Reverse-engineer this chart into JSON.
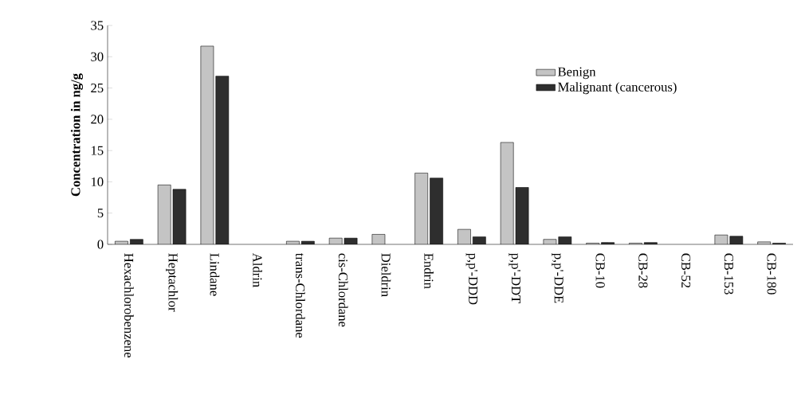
{
  "chart_data": {
    "type": "bar",
    "ylabel": "Concentration in ng/g",
    "categories": [
      "Hexachlorobenzene",
      "Heptachlor",
      "Lindane",
      "Aldrin",
      "trans-Chlordane",
      "cis-Chlordane",
      "Dieldrin",
      "Endrin",
      "p,p'-DDD",
      "p,p'-DDT",
      "p,p'-DDE",
      "CB-10",
      "CB-28",
      "CB-52",
      "CB-153",
      "CB-180"
    ],
    "series": [
      {
        "name": "Benign",
        "color": "#c4c4c4",
        "values": [
          0.5,
          9.5,
          31.7,
          0,
          0.5,
          1.0,
          1.6,
          11.4,
          2.4,
          16.3,
          0.8,
          0.2,
          0.2,
          0,
          1.5,
          0.4
        ]
      },
      {
        "name": "Malignant (cancerous)",
        "color": "#2e2e2e",
        "values": [
          0.8,
          8.8,
          26.9,
          0,
          0.5,
          1.0,
          0,
          10.6,
          1.2,
          9.1,
          1.2,
          0.3,
          0.3,
          0,
          1.3,
          0.2
        ]
      }
    ],
    "ylim": [
      0,
      35
    ],
    "yticks": [
      0,
      5,
      10,
      15,
      20,
      25,
      30,
      35
    ],
    "grid": false,
    "legend": "top right"
  }
}
